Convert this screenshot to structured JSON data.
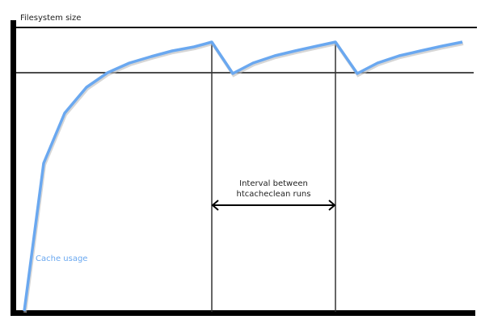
{
  "diagram": {
    "y_axis_label": "Filesystem size",
    "curve_label": "Cache usage",
    "interval_label_line1": "Interval between",
    "interval_label_line2": "htcacheclean runs",
    "curve_color": "#6aa8f0"
  }
}
